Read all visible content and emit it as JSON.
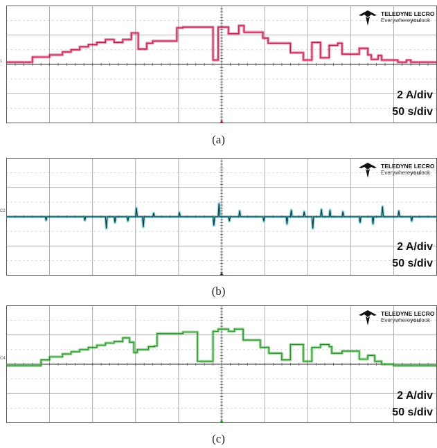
{
  "brand": {
    "name": "TELEDYNE LECRO",
    "tagline_before": "Everywhere",
    "tagline_bold": "you",
    "tagline_after": "look"
  },
  "chart_data": [
    {
      "type": "line",
      "caption": "(a)",
      "channel_marker": "1",
      "scale_current": "2 A/div",
      "scale_time": "50 s/div",
      "grid": {
        "x_divisions": 10,
        "y_divisions": 8
      },
      "ylim": [
        -8,
        8
      ],
      "xlim": [
        0,
        500
      ],
      "ground_offset_div": 0,
      "colors": {
        "trace": "#b0204a",
        "noise": "#e23a6b"
      },
      "series": [
        {
          "x": [
            0,
            30,
            30,
            50,
            50,
            65,
            65,
            75,
            75,
            85,
            85,
            95,
            95,
            105,
            105,
            115,
            115,
            125,
            125,
            135,
            135,
            145,
            145,
            153,
            153,
            163,
            163,
            170,
            170,
            198,
            198,
            205,
            205,
            240,
            240,
            246,
            246,
            258,
            258,
            270,
            270,
            276,
            276,
            298,
            298,
            304,
            304,
            330,
            330,
            345,
            345,
            355,
            355,
            365,
            365,
            375,
            375,
            385,
            385,
            390,
            390,
            410,
            410,
            420,
            420,
            424,
            424,
            432,
            432,
            436,
            436,
            455,
            455,
            465,
            465,
            470,
            470,
            500
          ],
          "y": [
            0.3,
            0.3,
            1.0,
            1.0,
            1.3,
            1.3,
            1.7,
            1.7,
            2.0,
            2.0,
            2.4,
            2.4,
            2.7,
            2.7,
            3.0,
            3.0,
            3.4,
            3.4,
            3.0,
            3.0,
            3.4,
            3.4,
            4.3,
            4.3,
            2.1,
            2.1,
            2.9,
            2.9,
            3.2,
            3.2,
            5.0,
            5.0,
            5.1,
            5.1,
            0.6,
            0.6,
            5.1,
            5.1,
            4.2,
            4.2,
            5.3,
            5.3,
            4.4,
            4.4,
            3.6,
            3.6,
            2.9,
            2.9,
            1.6,
            1.6,
            0.6,
            0.6,
            3.0,
            3.0,
            0.9,
            0.9,
            2.6,
            2.6,
            2.9,
            2.9,
            1.4,
            1.4,
            2.2,
            2.2,
            1.3,
            1.3,
            0.7,
            0.7,
            1.2,
            1.2,
            0.6,
            0.6,
            0.3,
            0.3,
            0.6,
            0.6,
            0.3,
            0.3
          ]
        }
      ]
    },
    {
      "type": "line",
      "caption": "(b)",
      "channel_marker": "C2",
      "scale_current": "2 A/div",
      "scale_time": "50 s/div",
      "grid": {
        "x_divisions": 10,
        "y_divisions": 8
      },
      "ylim": [
        -8,
        8
      ],
      "xlim": [
        0,
        500
      ],
      "ground_offset_div": 0,
      "colors": {
        "trace": "#1a3a40",
        "noise": "#2cbcc8"
      },
      "series": [
        {
          "x": [
            0,
            45,
            46,
            47,
            90,
            91,
            92,
            115,
            116,
            117,
            125,
            126,
            127,
            140,
            141,
            142,
            150,
            151,
            152,
            158,
            159,
            160,
            170,
            171,
            172,
            200,
            201,
            202,
            240,
            241,
            242,
            246,
            247,
            248,
            258,
            259,
            260,
            270,
            271,
            272,
            298,
            299,
            300,
            325,
            326,
            327,
            330,
            331,
            332,
            345,
            346,
            347,
            355,
            356,
            357,
            365,
            366,
            367,
            375,
            376,
            377,
            390,
            391,
            392,
            410,
            411,
            412,
            425,
            426,
            427,
            436,
            437,
            438,
            455,
            456,
            457,
            470,
            471,
            472,
            500
          ],
          "y": [
            0,
            0,
            -0.5,
            0,
            0,
            -0.5,
            0,
            0,
            -1.6,
            0,
            0,
            -0.8,
            0,
            0,
            -0.6,
            0,
            0,
            1.2,
            0,
            0,
            -1.4,
            0,
            0,
            0.5,
            0,
            0,
            0.6,
            0,
            0,
            -1.2,
            0,
            0,
            1.8,
            0,
            0,
            -0.6,
            0,
            0,
            0.8,
            0,
            0,
            -0.6,
            0,
            0,
            -1.0,
            0,
            0,
            0.9,
            0,
            0,
            0.7,
            0,
            0,
            -1.6,
            0,
            0,
            1.0,
            0,
            0,
            0.9,
            0,
            0,
            0.7,
            0,
            0,
            -0.8,
            0,
            0,
            -1.0,
            0,
            0,
            1.4,
            0,
            0,
            0.8,
            0,
            0,
            -0.6,
            0,
            0
          ]
        }
      ]
    },
    {
      "type": "line",
      "caption": "(c)",
      "channel_marker": "C4",
      "scale_current": "2 A/div",
      "scale_time": "50 s/div",
      "grid": {
        "x_divisions": 10,
        "y_divisions": 8
      },
      "ylim": [
        -8,
        8
      ],
      "xlim": [
        0,
        500
      ],
      "ground_offset_div": 0,
      "colors": {
        "trace": "#2f8a2f",
        "noise": "#4fbf4f"
      },
      "series": [
        {
          "x": [
            0,
            40,
            40,
            50,
            50,
            65,
            65,
            75,
            75,
            85,
            85,
            95,
            95,
            105,
            105,
            115,
            115,
            125,
            125,
            135,
            135,
            143,
            143,
            148,
            148,
            152,
            152,
            165,
            165,
            172,
            172,
            175,
            175,
            205,
            205,
            222,
            222,
            240,
            240,
            246,
            246,
            258,
            258,
            265,
            265,
            275,
            275,
            295,
            295,
            305,
            305,
            320,
            320,
            330,
            330,
            345,
            345,
            355,
            355,
            365,
            365,
            375,
            375,
            378,
            378,
            390,
            390,
            410,
            410,
            420,
            420,
            428,
            428,
            436,
            436,
            450,
            450,
            500
          ],
          "y": [
            -0.2,
            -0.2,
            0.6,
            0.6,
            1.0,
            1.0,
            1.4,
            1.4,
            1.7,
            1.7,
            2.0,
            2.0,
            2.3,
            2.3,
            2.6,
            2.6,
            2.9,
            2.9,
            3.1,
            3.1,
            3.6,
            3.6,
            3.0,
            3.0,
            1.6,
            1.6,
            2.0,
            2.0,
            2.4,
            2.4,
            2.5,
            2.5,
            4.2,
            4.2,
            4.4,
            4.4,
            0.4,
            0.4,
            4.5,
            4.5,
            4.8,
            4.8,
            4.5,
            4.5,
            4.8,
            4.8,
            3.3,
            3.3,
            2.3,
            2.3,
            1.5,
            1.5,
            0.6,
            0.6,
            2.7,
            2.7,
            0.4,
            0.4,
            2.3,
            2.3,
            2.7,
            2.7,
            2.4,
            2.4,
            1.5,
            1.5,
            1.8,
            1.8,
            0.7,
            0.7,
            1.2,
            1.2,
            0.4,
            0.4,
            0.0,
            0.0,
            -0.2,
            -0.2
          ]
        }
      ]
    }
  ]
}
